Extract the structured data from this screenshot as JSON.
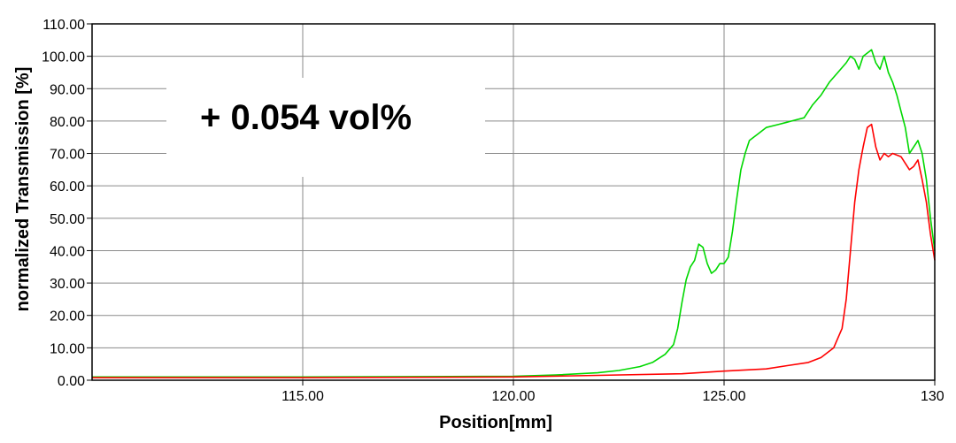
{
  "chart_data": {
    "type": "line",
    "title": "",
    "xlabel": "Position[mm]",
    "ylabel": "normalized Transmission [%]",
    "xlim": [
      110.0,
      130.0
    ],
    "ylim": [
      0.0,
      110.0
    ],
    "xticks": [
      {
        "value": 115,
        "label": "115.00"
      },
      {
        "value": 120,
        "label": "120.00"
      },
      {
        "value": 125,
        "label": "125.00"
      },
      {
        "value": 130,
        "label": "130"
      }
    ],
    "yticks": [
      {
        "value": 0,
        "label": "0.00"
      },
      {
        "value": 10,
        "label": "10.00"
      },
      {
        "value": 20,
        "label": "20.00"
      },
      {
        "value": 30,
        "label": "30.00"
      },
      {
        "value": 40,
        "label": "40.00"
      },
      {
        "value": 50,
        "label": "50.00"
      },
      {
        "value": 60,
        "label": "60.00"
      },
      {
        "value": 70,
        "label": "70.00"
      },
      {
        "value": 80,
        "label": "80.00"
      },
      {
        "value": 90,
        "label": "90.00"
      },
      {
        "value": 100,
        "label": "100.00"
      },
      {
        "value": 110,
        "label": "110.00"
      }
    ],
    "grid": true,
    "annotation": "+ 0.054 vol%",
    "series": [
      {
        "color": "#00d800",
        "x": [
          110.0,
          115.0,
          120.0,
          121.0,
          122.0,
          122.5,
          123.0,
          123.3,
          123.6,
          123.8,
          123.9,
          124.0,
          124.1,
          124.2,
          124.3,
          124.4,
          124.5,
          124.6,
          124.7,
          124.8,
          124.9,
          125.0,
          125.1,
          125.2,
          125.3,
          125.4,
          125.5,
          125.6,
          125.8,
          126.0,
          126.3,
          126.6,
          126.9,
          127.1,
          127.3,
          127.5,
          127.7,
          127.9,
          128.0,
          128.1,
          128.2,
          128.3,
          128.4,
          128.5,
          128.6,
          128.7,
          128.8,
          128.9,
          129.0,
          129.1,
          129.2,
          129.3,
          129.4,
          129.5,
          129.6,
          129.7,
          129.8,
          129.9,
          130.0
        ],
        "y": [
          1.0,
          1.0,
          1.2,
          1.6,
          2.3,
          3.0,
          4.2,
          5.5,
          8.0,
          11.0,
          16.0,
          24.0,
          31.0,
          35.0,
          37.0,
          42.0,
          41.0,
          36.0,
          33.0,
          34.0,
          36.0,
          36.0,
          38.0,
          46.0,
          56.0,
          65.0,
          70.0,
          74.0,
          76.0,
          78.0,
          79.0,
          80.0,
          81.0,
          85.0,
          88.0,
          92.0,
          95.0,
          98.0,
          100.0,
          99.0,
          96.0,
          100.0,
          101.0,
          102.0,
          98.0,
          96.0,
          100.0,
          95.0,
          92.0,
          88.0,
          83.0,
          78.0,
          70.0,
          72.0,
          74.0,
          70.0,
          62.0,
          50.0,
          40.0
        ]
      },
      {
        "color": "#ff0000",
        "x": [
          110.0,
          115.0,
          120.0,
          122.0,
          124.0,
          125.0,
          126.0,
          126.5,
          127.0,
          127.3,
          127.6,
          127.8,
          127.9,
          128.0,
          128.1,
          128.2,
          128.3,
          128.4,
          128.5,
          128.6,
          128.7,
          128.8,
          128.9,
          129.0,
          129.2,
          129.4,
          129.5,
          129.6,
          129.7,
          129.8,
          129.9,
          130.0
        ],
        "y": [
          0.8,
          0.8,
          1.0,
          1.5,
          2.0,
          2.8,
          3.5,
          4.5,
          5.5,
          7.0,
          10.0,
          16.0,
          25.0,
          40.0,
          55.0,
          65.0,
          72.0,
          78.0,
          79.0,
          72.0,
          68.0,
          70.0,
          69.0,
          70.0,
          69.0,
          65.0,
          66.0,
          68.0,
          62.0,
          55.0,
          45.0,
          37.0
        ]
      }
    ]
  }
}
